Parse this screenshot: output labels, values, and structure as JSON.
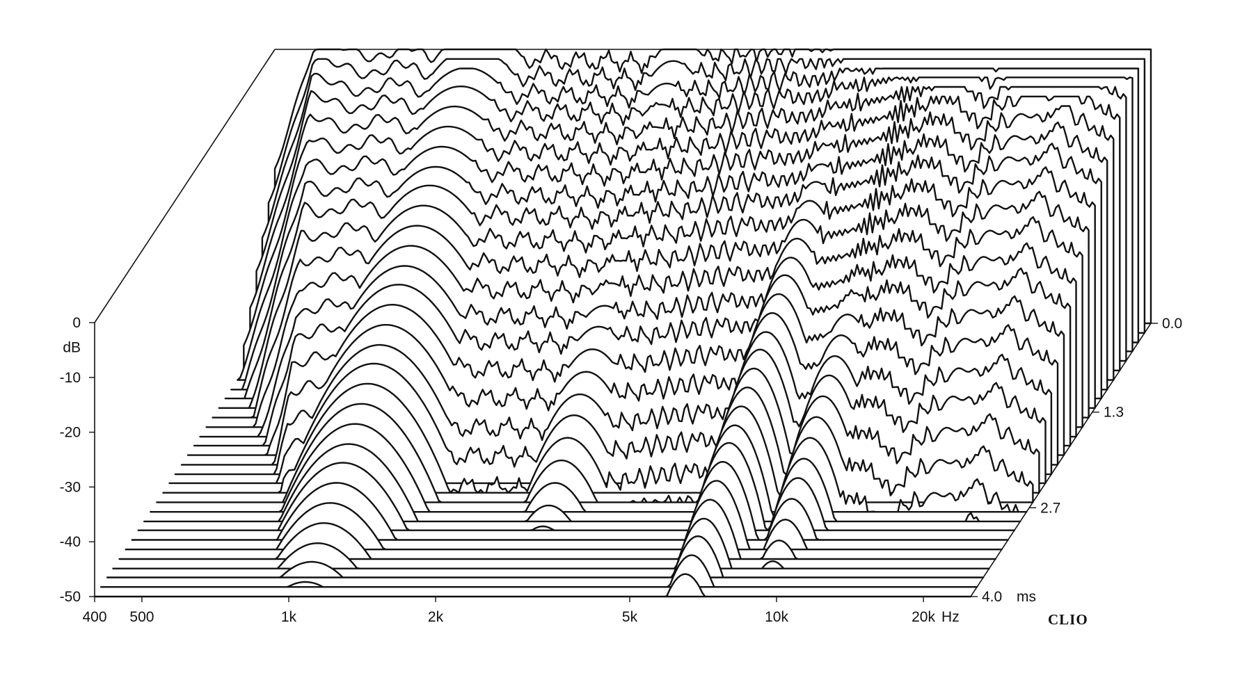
{
  "chart_data": {
    "type": "waterfall",
    "title": "",
    "xlabel": "Hz",
    "ylabel": "dB",
    "zlabel": "ms",
    "x_scale": "log",
    "xlim": [
      400,
      25000
    ],
    "ylim": [
      -50,
      0
    ],
    "zlim": [
      0.0,
      4.0
    ],
    "x_ticks": [
      {
        "value": 400,
        "label": "400"
      },
      {
        "value": 500,
        "label": "500"
      },
      {
        "value": 1000,
        "label": "1k"
      },
      {
        "value": 2000,
        "label": "2k"
      },
      {
        "value": 5000,
        "label": "5k"
      },
      {
        "value": 10000,
        "label": "10k"
      },
      {
        "value": 20000,
        "label": "20k"
      }
    ],
    "x_unit_label": "Hz",
    "y_ticks": [
      {
        "value": 0,
        "label": "0"
      },
      {
        "value": -10,
        "label": "-10"
      },
      {
        "value": -20,
        "label": "-20"
      },
      {
        "value": -30,
        "label": "-30"
      },
      {
        "value": -40,
        "label": "-40"
      },
      {
        "value": -50,
        "label": "-50"
      }
    ],
    "y_unit_label": "dB",
    "z_ticks": [
      {
        "value": 0.0,
        "label": "0.0"
      },
      {
        "value": 1.3,
        "label": "1.3"
      },
      {
        "value": 2.7,
        "label": "2.7"
      },
      {
        "value": 4.0,
        "label": "4.0"
      }
    ],
    "z_unit_label": "ms",
    "slice_count": 30,
    "slice_times_ms": [
      0.0,
      0.14,
      0.28,
      0.41,
      0.55,
      0.69,
      0.83,
      0.97,
      1.1,
      1.24,
      1.38,
      1.52,
      1.66,
      1.79,
      1.93,
      2.07,
      2.21,
      2.34,
      2.48,
      2.62,
      2.76,
      2.9,
      3.03,
      3.17,
      3.31,
      3.45,
      3.59,
      3.72,
      3.86,
      4.0
    ],
    "first_slice_response": {
      "freq_hz": [
        400,
        450,
        500,
        600,
        700,
        800,
        900,
        1000,
        1200,
        1400,
        1600,
        1800,
        2000,
        2200,
        2500,
        2800,
        3100,
        3500,
        4000,
        4500,
        5000,
        5500,
        6000,
        7000,
        8000,
        9000,
        10000,
        11000,
        12000,
        13000,
        14000,
        16000,
        18000,
        20000,
        22000,
        25000
      ],
      "db": [
        0,
        0,
        0,
        -0.3,
        -0.5,
        -0.8,
        -1.0,
        -1.2,
        -1.5,
        -1.8,
        -2.0,
        -2.2,
        -2.0,
        -2.5,
        -2.3,
        -1.5,
        -1.0,
        -1.0,
        0.0,
        0.5,
        1.0,
        1.5,
        2.0,
        3.0,
        4.0,
        5.5,
        6.5,
        8.0,
        5.5,
        3.0,
        6.5,
        8.0,
        9.0,
        10.0,
        7.0,
        4.0
      ]
    },
    "grid": false,
    "legend": "none"
  },
  "brand": "CLIO"
}
